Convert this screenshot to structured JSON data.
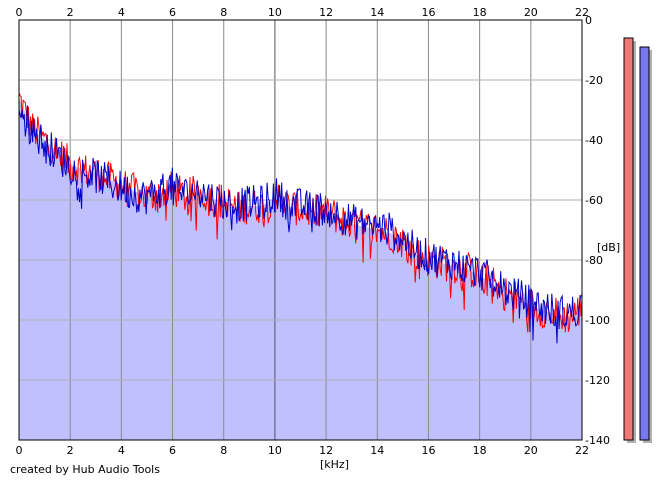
{
  "chart_data": {
    "type": "area",
    "xlabel": "[kHz]",
    "ylabel": "[dB]",
    "xlim": [
      0,
      22
    ],
    "ylim": [
      -140,
      0
    ],
    "x_ticks": [
      0,
      2,
      4,
      6,
      8,
      10,
      12,
      14,
      16,
      18,
      20,
      22
    ],
    "y_ticks": [
      0,
      -20,
      -40,
      -60,
      -80,
      -100,
      -120,
      -140
    ],
    "grid": true,
    "series": [
      {
        "color": "#ff0000",
        "x": [
          0,
          0.5,
          1,
          1.5,
          2,
          2.5,
          3,
          3.5,
          4,
          4.5,
          5,
          5.5,
          6,
          6.5,
          7,
          7.5,
          8,
          8.5,
          9,
          9.5,
          10,
          10.5,
          11,
          11.5,
          12,
          12.5,
          13,
          13.5,
          14,
          14.5,
          15,
          15.5,
          16,
          16.5,
          17,
          17.5,
          18,
          18.5,
          19,
          19.5,
          20,
          20.5,
          21,
          21.5,
          22
        ],
        "y": [
          -26,
          -36,
          -40,
          -44,
          -48,
          -50,
          -51,
          -53,
          -55,
          -57,
          -59,
          -58,
          -56,
          -59,
          -57,
          -60,
          -60,
          -63,
          -62,
          -62,
          -59,
          -62,
          -63,
          -64,
          -64,
          -66,
          -68,
          -69,
          -70,
          -71,
          -74,
          -78,
          -80,
          -81,
          -82,
          -83,
          -85,
          -88,
          -91,
          -93,
          -95,
          -97,
          -98,
          -99,
          -96
        ]
      },
      {
        "color": "#0000cc",
        "x": [
          0,
          0.5,
          1,
          1.5,
          2,
          2.5,
          3,
          3.5,
          4,
          4.5,
          5,
          5.5,
          6,
          6.5,
          7,
          7.5,
          8,
          8.5,
          9,
          9.5,
          10,
          10.5,
          11,
          11.5,
          12,
          12.5,
          13,
          13.5,
          14,
          14.5,
          15,
          15.5,
          16,
          16.5,
          17,
          17.5,
          18,
          18.5,
          19,
          19.5,
          20,
          20.5,
          21,
          21.5,
          22
        ],
        "y": [
          -28,
          -37,
          -41,
          -45,
          -49,
          -51,
          -52,
          -54,
          -56,
          -58,
          -59,
          -57,
          -55,
          -58,
          -57,
          -59,
          -61,
          -62,
          -61,
          -61,
          -58,
          -61,
          -62,
          -63,
          -63,
          -65,
          -67,
          -68,
          -69,
          -70,
          -73,
          -77,
          -79,
          -80,
          -81,
          -83,
          -84,
          -87,
          -90,
          -92,
          -94,
          -96,
          -97,
          -98,
          -95
        ]
      }
    ],
    "meters": [
      {
        "color": "#ee7777",
        "top_db": -6
      },
      {
        "color": "#7777ee",
        "top_db": -9
      }
    ],
    "fill_color": "#c0c0ff"
  },
  "footer": {
    "credit": "created by Hub Audio Tools"
  }
}
